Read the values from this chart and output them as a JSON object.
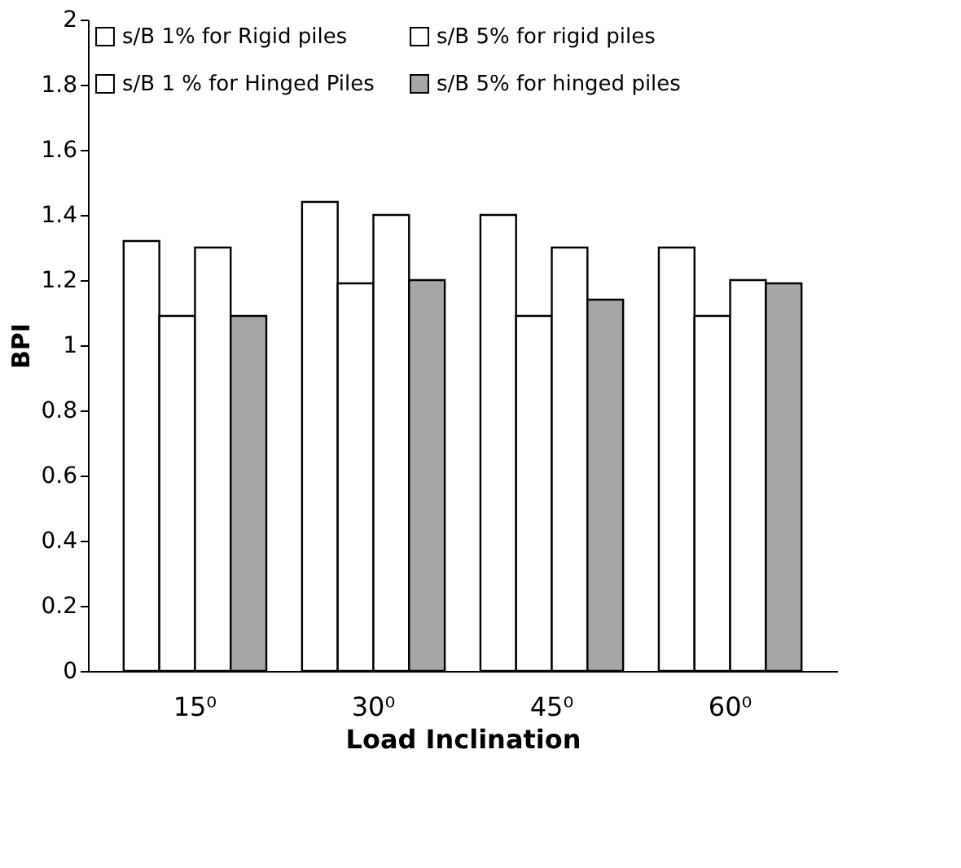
{
  "chart_data": {
    "type": "bar",
    "xlabel": "Load Inclination",
    "ylabel": "BPI",
    "categories": [
      "15⁰",
      "30⁰",
      "45⁰",
      "60⁰"
    ],
    "series": [
      {
        "name": "s/B 1% for Rigid piles",
        "color": "#ffffff",
        "values": [
          1.32,
          1.44,
          1.4,
          1.3
        ]
      },
      {
        "name": "s/B 5% for rigid piles",
        "color": "#ffffff",
        "values": [
          1.09,
          1.19,
          1.09,
          1.09
        ]
      },
      {
        "name": "s/B 1 % for Hinged Piles",
        "color": "#ffffff",
        "values": [
          1.3,
          1.4,
          1.3,
          1.2
        ]
      },
      {
        "name": "s/B 5% for hinged piles",
        "color": "#a6a6a6",
        "values": [
          1.09,
          1.2,
          1.14,
          1.19
        ]
      }
    ],
    "ylim": [
      0,
      2
    ],
    "yticks": [
      0,
      0.2,
      0.4,
      0.6,
      0.8,
      1,
      1.2,
      1.4,
      1.6,
      1.8,
      2
    ],
    "grid": false,
    "legend": "top"
  }
}
